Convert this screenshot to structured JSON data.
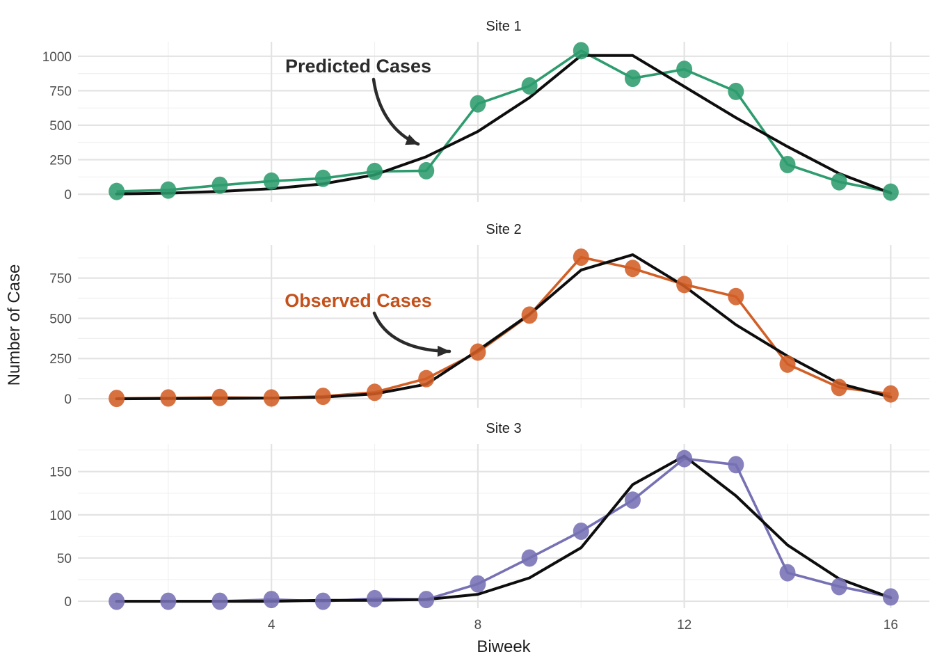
{
  "figure": {
    "xlabel": "Biweek",
    "ylabel": "Number of Case",
    "background": "#ffffff",
    "grid_major_color": "#e3e3e3",
    "grid_minor_color": "#f0f0f0",
    "tick_label_color": "#4d4d4d",
    "title_color": "#1f1f1f"
  },
  "annotations": [
    {
      "panel": 0,
      "label": "Predicted Cases",
      "color": "#2b2b2b"
    },
    {
      "panel": 1,
      "label": "Observed Cases",
      "color": "#c4511b"
    }
  ],
  "chart_data": [
    {
      "type": "line",
      "title": "Site 1",
      "xlabel": "Biweek",
      "ylabel": "Number of Case",
      "x": [
        1,
        2,
        3,
        4,
        5,
        6,
        7,
        8,
        9,
        10,
        11,
        12,
        13,
        14,
        15,
        16
      ],
      "xticks": [
        4,
        8,
        12,
        16
      ],
      "xlim": [
        0.25,
        16.75
      ],
      "yticks": [
        0,
        250,
        500,
        750,
        1000
      ],
      "ylim": [
        -55,
        1105
      ],
      "grid": true,
      "legend": "none",
      "series": [
        {
          "name": "Observed Cases",
          "role": "observed",
          "color": "#2E9C6E",
          "values": [
            20,
            30,
            65,
            95,
            115,
            165,
            170,
            655,
            785,
            1040,
            840,
            905,
            745,
            215,
            90,
            15
          ]
        },
        {
          "name": "Predicted Cases",
          "role": "predicted",
          "color": "#0d0d0d",
          "values": [
            2,
            8,
            20,
            40,
            75,
            140,
            272,
            455,
            700,
            1005,
            1005,
            780,
            555,
            345,
            150,
            8
          ]
        }
      ]
    },
    {
      "type": "line",
      "title": "Site 2",
      "xlabel": "Biweek",
      "ylabel": "Number of Case",
      "x": [
        1,
        2,
        3,
        4,
        5,
        6,
        7,
        8,
        9,
        10,
        11,
        12,
        13,
        14,
        15,
        16
      ],
      "xticks": [
        4,
        8,
        12,
        16
      ],
      "xlim": [
        0.25,
        16.75
      ],
      "yticks": [
        0,
        250,
        500,
        750
      ],
      "ylim": [
        -56,
        956
      ],
      "grid": true,
      "legend": "none",
      "series": [
        {
          "name": "Observed Cases",
          "role": "observed",
          "color": "#D15F26",
          "values": [
            2,
            5,
            8,
            5,
            15,
            40,
            125,
            290,
            520,
            880,
            810,
            710,
            635,
            215,
            70,
            30
          ]
        },
        {
          "name": "Predicted Cases",
          "role": "predicted",
          "color": "#0d0d0d",
          "values": [
            0,
            1,
            2,
            4,
            10,
            30,
            90,
            300,
            525,
            800,
            895,
            700,
            460,
            265,
            95,
            10
          ]
        }
      ]
    },
    {
      "type": "line",
      "title": "Site 3",
      "xlabel": "Biweek",
      "ylabel": "Number of Case",
      "x": [
        1,
        2,
        3,
        4,
        5,
        6,
        7,
        8,
        9,
        10,
        11,
        12,
        13,
        14,
        15,
        16
      ],
      "xticks": [
        4,
        8,
        12,
        16
      ],
      "xlim": [
        0.25,
        16.75
      ],
      "yticks": [
        0,
        50,
        100,
        150
      ],
      "ylim": [
        -8,
        182
      ],
      "grid": true,
      "legend": "none",
      "series": [
        {
          "name": "Observed Cases",
          "role": "observed",
          "color": "#7671B4",
          "values": [
            0,
            0,
            0,
            2,
            0,
            3,
            2,
            20,
            50,
            81,
            117,
            165,
            158,
            33,
            17,
            5
          ]
        },
        {
          "name": "Predicted Cases",
          "role": "predicted",
          "color": "#0d0d0d",
          "values": [
            0,
            0,
            0,
            0,
            1,
            1,
            2,
            8,
            27,
            62,
            135,
            168,
            122,
            65,
            26,
            4
          ]
        }
      ]
    }
  ]
}
